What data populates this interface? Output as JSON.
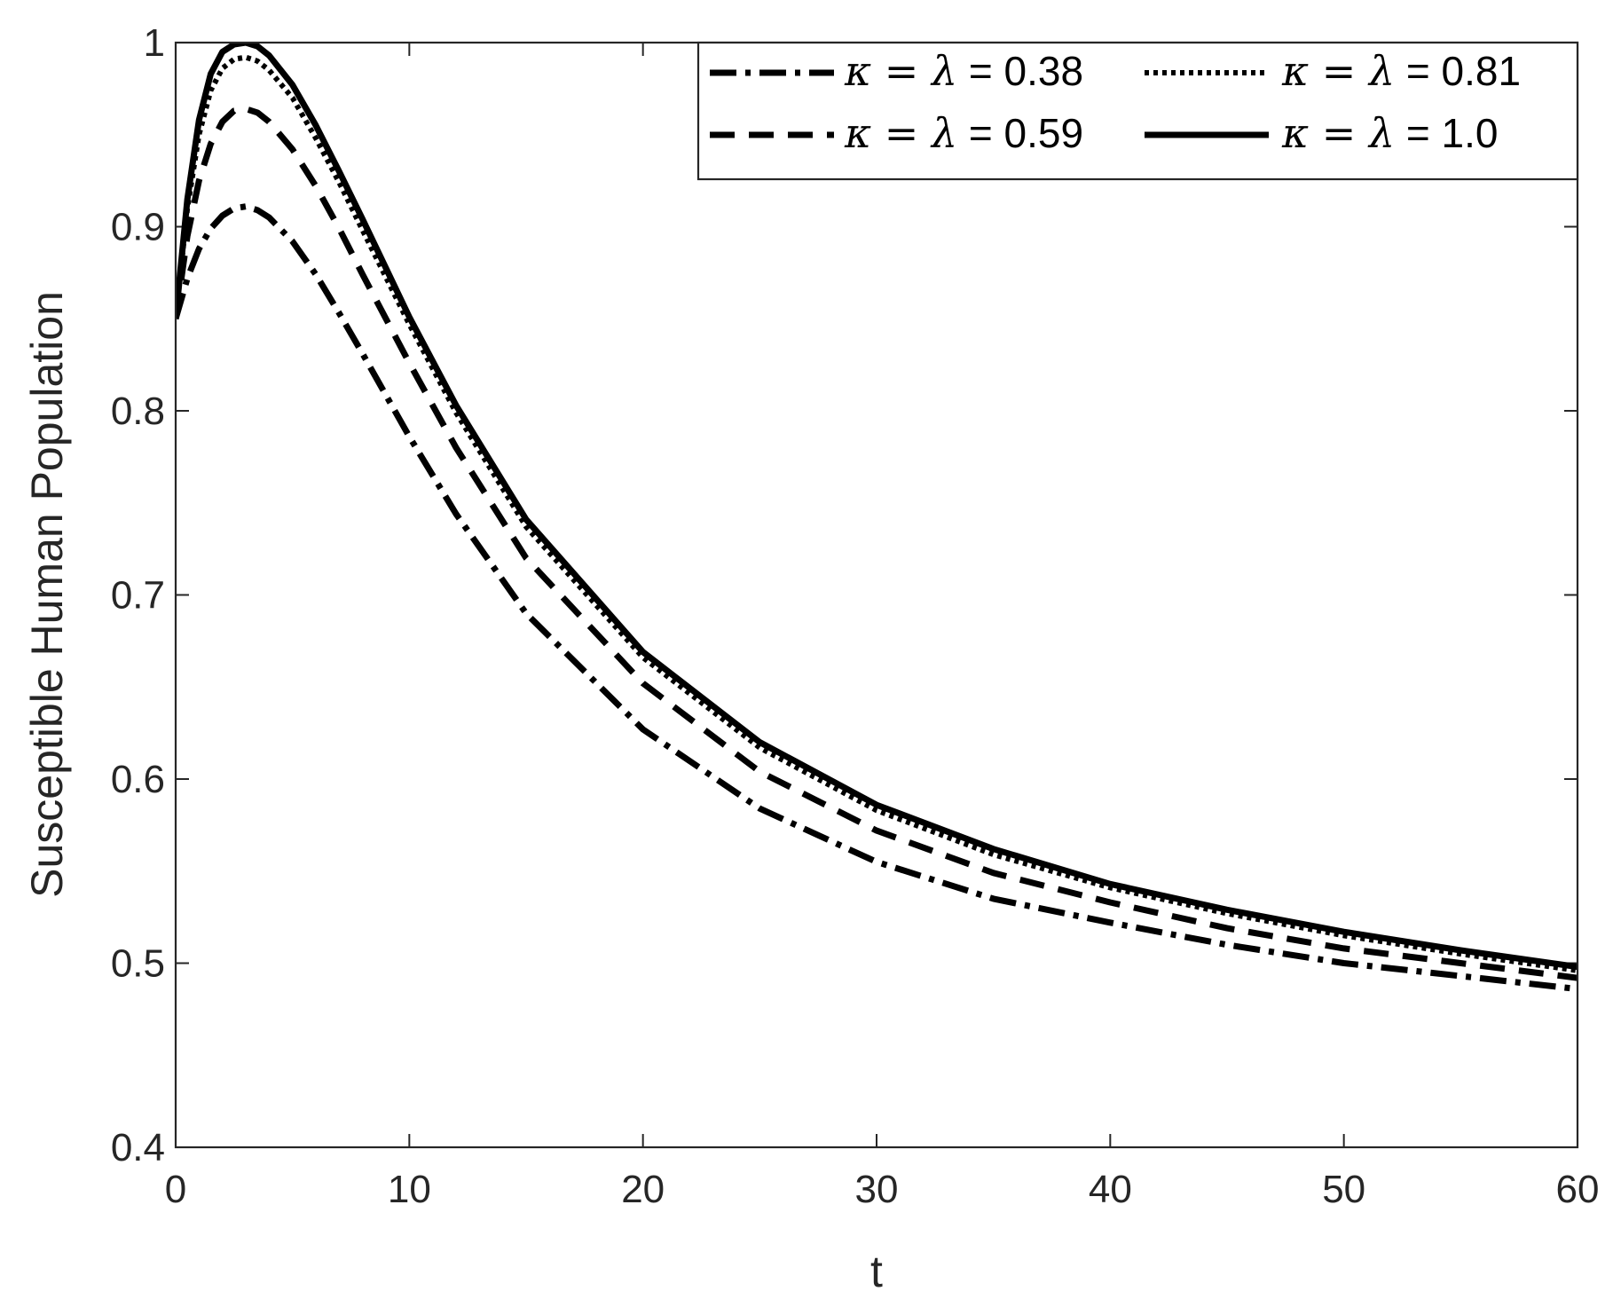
{
  "chart_data": {
    "type": "line",
    "title": "",
    "xlabel": "t",
    "ylabel": "Susceptible Human Population",
    "xlim": [
      0,
      60
    ],
    "ylim": [
      0.4,
      1
    ],
    "xticks": [
      0,
      10,
      20,
      30,
      40,
      50,
      60
    ],
    "xtick_labels": [
      "0",
      "10",
      "20",
      "30",
      "40",
      "50",
      "60"
    ],
    "yticks": [
      0.4,
      0.5,
      0.6,
      0.7,
      0.8,
      0.9,
      1.0
    ],
    "ytick_labels": [
      "0.4",
      "0.5",
      "0.6",
      "0.7",
      "0.8",
      "0.9",
      "1"
    ],
    "grid": false,
    "legend_position": "top-right",
    "line_color": "#000000",
    "series": [
      {
        "legend_symbol": "κ = λ",
        "legend_value": "= 0.38",
        "style": "dashdot",
        "x": [
          0,
          0.5,
          1,
          1.5,
          2,
          2.5,
          3,
          3.5,
          4,
          5,
          6,
          7,
          8,
          10,
          12,
          15,
          20,
          25,
          30,
          35,
          40,
          45,
          50,
          55,
          60
        ],
        "values": [
          0.85,
          0.872,
          0.888,
          0.899,
          0.906,
          0.91,
          0.911,
          0.909,
          0.905,
          0.892,
          0.874,
          0.853,
          0.831,
          0.786,
          0.744,
          0.69,
          0.627,
          0.584,
          0.555,
          0.535,
          0.522,
          0.51,
          0.5,
          0.493,
          0.486
        ]
      },
      {
        "legend_symbol": "κ = λ",
        "legend_value": "= 0.59",
        "style": "dashed",
        "x": [
          0,
          0.5,
          1,
          1.5,
          2,
          2.5,
          3,
          3.5,
          4,
          5,
          6,
          7,
          8,
          10,
          12,
          15,
          20,
          25,
          30,
          35,
          40,
          45,
          50,
          55,
          60
        ],
        "values": [
          0.85,
          0.895,
          0.925,
          0.945,
          0.957,
          0.963,
          0.964,
          0.962,
          0.957,
          0.942,
          0.922,
          0.899,
          0.874,
          0.826,
          0.78,
          0.72,
          0.652,
          0.604,
          0.572,
          0.549,
          0.533,
          0.519,
          0.508,
          0.5,
          0.492
        ]
      },
      {
        "legend_symbol": "κ = λ",
        "legend_value": "= 0.81",
        "style": "dotted",
        "x": [
          0,
          0.5,
          1,
          1.5,
          2,
          2.5,
          3,
          3.5,
          4,
          5,
          6,
          7,
          8,
          10,
          12,
          15,
          20,
          25,
          30,
          35,
          40,
          45,
          50,
          55,
          60
        ],
        "values": [
          0.85,
          0.91,
          0.95,
          0.974,
          0.986,
          0.991,
          0.992,
          0.99,
          0.985,
          0.97,
          0.948,
          0.924,
          0.898,
          0.847,
          0.799,
          0.737,
          0.666,
          0.617,
          0.583,
          0.559,
          0.541,
          0.527,
          0.515,
          0.505,
          0.496
        ]
      },
      {
        "legend_symbol": "κ = λ",
        "legend_value": "= 1.0",
        "style": "solid",
        "x": [
          0,
          0.5,
          1,
          1.5,
          2,
          2.5,
          3,
          3.5,
          4,
          5,
          6,
          7,
          8,
          10,
          12,
          15,
          20,
          25,
          30,
          35,
          40,
          45,
          50,
          55,
          60
        ],
        "values": [
          0.85,
          0.915,
          0.958,
          0.983,
          0.995,
          0.999,
          1.0,
          0.998,
          0.993,
          0.977,
          0.955,
          0.93,
          0.904,
          0.851,
          0.803,
          0.741,
          0.669,
          0.62,
          0.586,
          0.562,
          0.543,
          0.529,
          0.517,
          0.507,
          0.498
        ]
      }
    ]
  }
}
